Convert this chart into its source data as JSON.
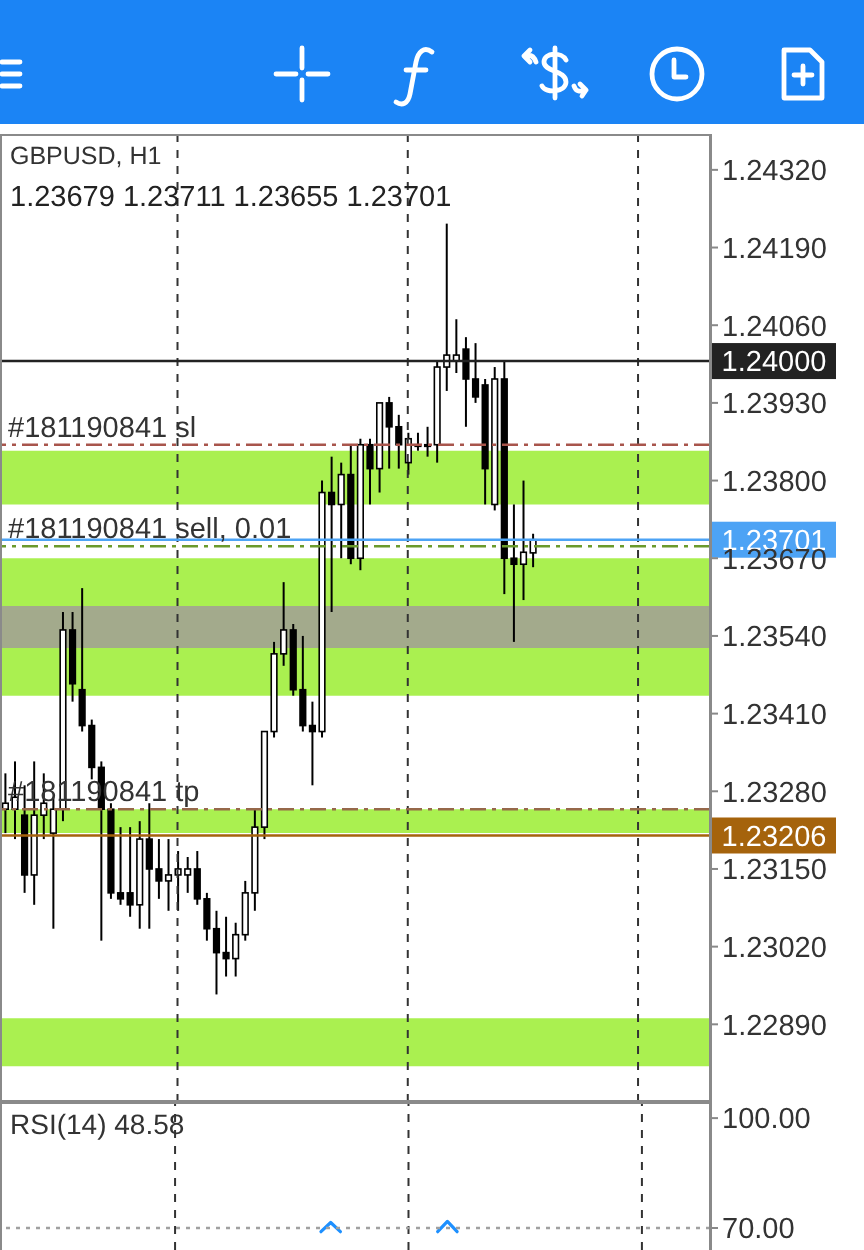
{
  "chart_data": [
    {
      "type": "candlestick",
      "title": "GBPUSD, H1",
      "subtitle": "1.23679 1.23711 1.23655 1.23701",
      "color": "#000000",
      "tick_labels": "y",
      "grid": "x",
      "categories": [
        null,
        null,
        null,
        null,
        null,
        null,
        null,
        null,
        null,
        null,
        null,
        null,
        null,
        null,
        null,
        null,
        null,
        null,
        null,
        null,
        null,
        null,
        null,
        null,
        null,
        null,
        null,
        null,
        null,
        null,
        null,
        null,
        null,
        null,
        null,
        null,
        null,
        null,
        null,
        null,
        null,
        null,
        null,
        null,
        null,
        null,
        null,
        null,
        null,
        null,
        null,
        null,
        null,
        null,
        null,
        null,
        null,
        null,
        null,
        null,
        null,
        null,
        null,
        null,
        null,
        null,
        null,
        null,
        null,
        null,
        null,
        null,
        null,
        null
      ],
      "ohlc": [
        [
          1.2325,
          1.2331,
          1.2321,
          1.2326
        ],
        [
          1.2325,
          1.2333,
          1.232,
          1.2327
        ],
        [
          1.2324,
          1.2329,
          1.2311,
          1.2314
        ],
        [
          1.2314,
          1.2333,
          1.2309,
          1.2324
        ],
        [
          1.2324,
          1.2331,
          1.232,
          1.2326
        ],
        [
          1.2321,
          1.2327,
          1.2305,
          1.2325
        ],
        [
          1.2325,
          1.2358,
          1.2323,
          1.2355
        ],
        [
          1.2355,
          1.2358,
          1.2343,
          1.2346
        ],
        [
          1.2345,
          1.2362,
          1.2338,
          1.2339
        ],
        [
          1.2339,
          1.234,
          1.233,
          1.2332
        ],
        [
          1.2332,
          1.2333,
          1.2303,
          1.2325
        ],
        [
          1.2325,
          1.2326,
          1.231,
          1.2311
        ],
        [
          1.2311,
          1.2322,
          1.2309,
          1.231
        ],
        [
          1.2311,
          1.2322,
          1.2307,
          1.2309
        ],
        [
          1.2309,
          1.2323,
          1.2305,
          1.232
        ],
        [
          1.232,
          1.2326,
          1.2305,
          1.2315
        ],
        [
          1.2315,
          1.232,
          1.231,
          1.2313
        ],
        [
          1.2313,
          1.232,
          1.2308,
          1.2314
        ],
        [
          1.2314,
          1.2318,
          1.2308,
          1.2315
        ],
        [
          1.2314,
          1.2317,
          1.2311,
          1.2315
        ],
        [
          1.2315,
          1.2318,
          1.2309,
          1.231
        ],
        [
          1.231,
          1.2311,
          1.2303,
          1.2305
        ],
        [
          1.2305,
          1.2308,
          1.2294,
          1.2301
        ],
        [
          1.2301,
          1.2307,
          1.2297,
          1.23
        ],
        [
          1.23,
          1.2306,
          1.2297,
          1.2304
        ],
        [
          1.2304,
          1.2313,
          1.2303,
          1.2311
        ],
        [
          1.2311,
          1.2325,
          1.2308,
          1.2322
        ],
        [
          1.2322,
          1.2338,
          1.232,
          1.2338
        ],
        [
          1.2338,
          1.2353,
          1.2337,
          1.2351
        ],
        [
          1.2351,
          1.2363,
          1.2349,
          1.2355
        ],
        [
          1.2355,
          1.2356,
          1.2344,
          1.2345
        ],
        [
          1.2345,
          1.2354,
          1.2338,
          1.2339
        ],
        [
          1.2339,
          1.2343,
          1.2329,
          1.2338
        ],
        [
          1.2338,
          1.238,
          1.2337,
          1.2378
        ],
        [
          1.2378,
          1.2384,
          1.2358,
          1.2376
        ],
        [
          1.2376,
          1.2383,
          1.2367,
          1.2381
        ],
        [
          1.2381,
          1.2386,
          1.2366,
          1.2367
        ],
        [
          1.2367,
          1.2387,
          1.2365,
          1.2386
        ],
        [
          1.2386,
          1.2387,
          1.2376,
          1.2382
        ],
        [
          1.2382,
          1.2393,
          1.2378,
          1.2393
        ],
        [
          1.2393,
          1.2394,
          1.2382,
          1.2389
        ],
        [
          1.2389,
          1.2391,
          1.2382,
          1.2386
        ],
        [
          1.2383,
          1.2388,
          1.2381,
          1.2387
        ],
        [
          1.2386,
          1.2388,
          1.2385,
          1.2386
        ],
        [
          1.2386,
          1.2389,
          1.2384,
          1.2386
        ],
        [
          1.2386,
          1.24,
          1.2383,
          1.2399
        ],
        [
          1.2399,
          1.2423,
          1.2395,
          1.2401
        ],
        [
          1.24,
          1.2407,
          1.2398,
          1.2401
        ],
        [
          1.2402,
          1.2404,
          1.2389,
          1.2397
        ],
        [
          1.2397,
          1.2403,
          1.2393,
          1.2394
        ],
        [
          1.2396,
          1.2397,
          1.2376,
          1.2382
        ],
        [
          1.2376,
          1.2399,
          1.2375,
          1.2397
        ],
        [
          1.2397,
          1.24,
          1.2361,
          1.2367
        ],
        [
          1.2367,
          1.2376,
          1.2353,
          1.2366
        ],
        [
          1.2366,
          1.238,
          1.236,
          1.2368
        ],
        [
          1.23679,
          1.23711,
          1.23655,
          1.23701
        ],
        null,
        null,
        null,
        null,
        null,
        null,
        null,
        null,
        null,
        null,
        null,
        null,
        null,
        null,
        null,
        null,
        null,
        null
      ],
      "ylim": [
        1.2276,
        1.2438
      ],
      "yticks": [
        {
          "value": 1.2289,
          "label": "1.22890"
        },
        {
          "value": 1.2302,
          "label": "1.23020"
        },
        {
          "value": 1.2315,
          "label": "1.23150"
        },
        {
          "value": 1.2328,
          "label": "1.23280"
        },
        {
          "value": 1.2341,
          "label": "1.23410"
        },
        {
          "value": 1.2354,
          "label": "1.23540"
        },
        {
          "value": 1.2367,
          "label": "1.23670"
        },
        {
          "value": 1.238,
          "label": "1.23800"
        },
        {
          "value": 1.2393,
          "label": "1.23930"
        },
        {
          "value": 1.2406,
          "label": "1.24060"
        },
        {
          "value": 1.2419,
          "label": "1.24190"
        },
        {
          "value": 1.2432,
          "label": "1.24320"
        }
      ],
      "bands": [
        {
          "axis": "y",
          "from": 1.2376,
          "to": 1.2385,
          "color": "#aaf050"
        },
        {
          "axis": "y",
          "from": 1.2344,
          "to": 1.2367,
          "color": "#aaf050"
        },
        {
          "axis": "y",
          "from": 1.2352,
          "to": 1.2359,
          "color": "#a3aa8c"
        },
        {
          "axis": "y",
          "from": 1.2321,
          "to": 1.2325,
          "color": "#aaf050"
        },
        {
          "axis": "y",
          "from": 1.2282,
          "to": 1.229,
          "color": "#aaf050"
        }
      ],
      "ref_lines": [
        {
          "axis": "y",
          "value": 1.24,
          "label": "1.24000",
          "color": "#222222",
          "line_style": "solid"
        },
        {
          "axis": "y",
          "value": 1.23701,
          "label": "1.23701",
          "color": "#4da3f5",
          "line_style": "solid"
        },
        {
          "axis": "y",
          "value": 1.23206,
          "label": "1.23206",
          "color": "#a5630c",
          "line_style": "solid"
        },
        {
          "axis": "y",
          "value": 1.2386,
          "label": "#181190841 sl",
          "color": "#a8554c",
          "line_style": "dashed"
        },
        {
          "axis": "y",
          "value": 1.2369,
          "label": "#181190841 sell, 0.01",
          "color": "#6b9a2c",
          "line_style": "dashed"
        },
        {
          "axis": "y",
          "value": 1.2325,
          "label": "#181190841 tp",
          "color": "#96684a",
          "line_style": "dashed"
        }
      ]
    },
    {
      "type": "line",
      "title": "RSI(14) 48.58",
      "tick_labels": "y",
      "grid": "x",
      "categories": [
        null,
        null,
        null,
        null,
        null,
        null,
        null,
        null,
        null,
        null,
        null,
        null,
        null,
        null,
        null,
        null,
        null,
        null,
        null,
        null,
        null,
        null,
        null,
        null,
        null,
        null,
        null,
        null,
        null,
        null,
        null,
        null,
        null,
        null,
        null,
        null,
        null,
        null,
        null,
        null,
        null,
        null,
        null,
        null,
        null,
        null,
        null,
        null,
        null,
        null,
        null,
        null,
        null,
        null,
        null,
        null,
        null,
        null,
        null,
        null,
        null,
        null,
        null,
        null,
        null,
        null,
        null,
        null,
        null,
        null,
        null,
        null,
        null,
        null
      ],
      "ylim": [
        64,
        104.4
      ],
      "yticks": [
        {
          "value": 70,
          "label": "70.00"
        },
        {
          "value": 100,
          "label": "100.00"
        }
      ],
      "ref_lines": [
        {
          "axis": "y",
          "value": 70,
          "color": "#a0a0a0",
          "line_style": "dotted"
        }
      ],
      "series": [
        {
          "color": "#1e90ff",
          "values": [
            null,
            null,
            null,
            null,
            null,
            null,
            null,
            null,
            null,
            null,
            null,
            null,
            null,
            null,
            null,
            null,
            null,
            null,
            null,
            null,
            null,
            null,
            null,
            null,
            null,
            null,
            null,
            null,
            null,
            null,
            null,
            null,
            null,
            69,
            71.5,
            69,
            null,
            null,
            null,
            null,
            null,
            null,
            null,
            null,
            null,
            69,
            71.8,
            69,
            null,
            null,
            null,
            null,
            null,
            null,
            null,
            null,
            null,
            null,
            null,
            null,
            null,
            null,
            null,
            null,
            null,
            null,
            null,
            null,
            null,
            null,
            null,
            null,
            null,
            null
          ]
        }
      ]
    }
  ]
}
